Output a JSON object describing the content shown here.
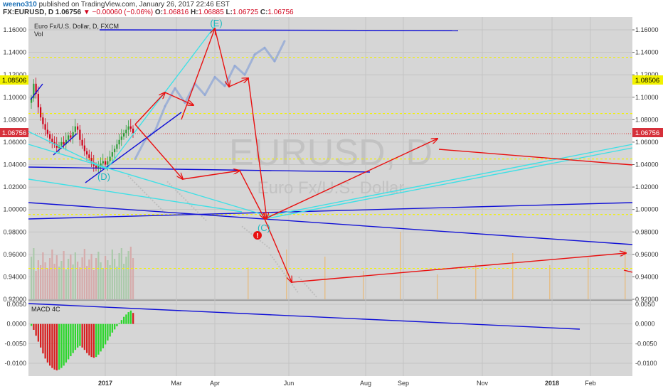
{
  "header": {
    "author": "weeno310",
    "published": "published on TradingView.com, January 26, 2017 22:46 EST",
    "symbol_line": "FX:EURUSD, D",
    "last": "1.06756",
    "change": "▼ −0.00060 (−0.06%)",
    "o_label": "O:",
    "o_value": "1.06816",
    "h_label": "H:",
    "h_value": "1.06885",
    "l_label": "L:",
    "l_value": "1.06725",
    "c_label": "C:",
    "c_value": "1.06756"
  },
  "main_panel": {
    "title": "Euro Fx/U.S. Dollar, D, FXCM",
    "vol_label": "Vol",
    "watermark_symbol": "EURUSD, D",
    "watermark_name": "Euro Fx/U.S. Dollar"
  },
  "price_badges": {
    "yellow": "1.08506",
    "red": "1.06756"
  },
  "wave_labels": {
    "d": "(D)",
    "e": "(E)",
    "c": "(C)",
    "warning": "!"
  },
  "macd_panel": {
    "title": "MACD 4C"
  },
  "colors": {
    "background": "#d6d6d6",
    "grid": "#c4c4c4",
    "up_candle": "#2e9e3a",
    "down_candle": "#d0021b",
    "projection": "#8fa6d6",
    "trend_blue": "#1010d6",
    "trend_cyan": "#3ee0e6",
    "arrow_red": "#e81010",
    "level_yellow": "#f2f200",
    "level_red": "#d94040",
    "macd_green": "#2ed62e",
    "macd_red": "#d62020"
  },
  "chart_data": [
    {
      "type": "line",
      "y_axis": {
        "min": 0.91,
        "max": 1.168,
        "ticks": [
          "1.16000",
          "1.14000",
          "1.12000",
          "1.10000",
          "1.08000",
          "1.06000",
          "1.04000",
          "1.02000",
          "1.00000",
          "0.98000",
          "0.96000",
          "0.94000",
          "0.92000"
        ]
      },
      "x_axis": {
        "ticks": [
          "2017",
          "Mar",
          "Apr",
          "Jun",
          "Aug",
          "Sep",
          "Nov",
          "2018",
          "Feb"
        ]
      },
      "yellow_levels": [
        1.1355,
        1.0855,
        1.045,
        0.9955,
        0.9475
      ],
      "red_level": 1.06756,
      "price_closes": [
        1.099,
        1.112,
        1.103,
        1.091,
        1.082,
        1.076,
        1.071,
        1.067,
        1.063,
        1.06,
        1.058,
        1.055,
        1.057,
        1.06,
        1.058,
        1.062,
        1.066,
        1.064,
        1.069,
        1.074,
        1.071,
        1.062,
        1.057,
        1.052,
        1.049,
        1.046,
        1.042,
        1.039,
        1.037,
        1.039,
        1.041,
        1.043,
        1.04,
        1.043,
        1.047,
        1.051,
        1.054,
        1.058,
        1.062,
        1.065,
        1.068,
        1.071,
        1.074,
        1.072,
        1.068
      ],
      "projection_path": [
        [
          1.045,
          1.062
        ],
        [
          1.062,
          1.07
        ],
        [
          1.07,
          1.092
        ],
        [
          1.092,
          1.108
        ],
        [
          1.108,
          1.095
        ],
        [
          1.095,
          1.112
        ],
        [
          1.112,
          1.102
        ],
        [
          1.102,
          1.118
        ],
        [
          1.118,
          1.11
        ],
        [
          1.11,
          1.128
        ],
        [
          1.128,
          1.12
        ],
        [
          1.12,
          1.138
        ],
        [
          1.138,
          1.144
        ],
        [
          1.144,
          1.132
        ],
        [
          1.132,
          1.15
        ]
      ],
      "wave_points": {
        "D": 1.035,
        "E": 1.16,
        "C": 0.991
      }
    },
    {
      "type": "bar",
      "name": "",
      "y_axis": {
        "min": -0.0135,
        "max": 0.0062,
        "ticks": [
          "0.0050",
          "0.0000",
          "-0.0050",
          "-0.0100"
        ]
      },
      "values": [
        -0.0005,
        -0.0015,
        -0.003,
        -0.0045,
        -0.006,
        -0.0075,
        -0.0088,
        -0.0098,
        -0.0106,
        -0.0112,
        -0.0116,
        -0.0118,
        -0.0116,
        -0.0112,
        -0.0106,
        -0.0098,
        -0.009,
        -0.0082,
        -0.0074,
        -0.0066,
        -0.006,
        -0.0056,
        -0.006,
        -0.0066,
        -0.0074,
        -0.008,
        -0.0084,
        -0.0086,
        -0.0084,
        -0.0078,
        -0.007,
        -0.0062,
        -0.0052,
        -0.0042,
        -0.0032,
        -0.0022,
        -0.0014,
        -0.0006,
        0.0002,
        0.001,
        0.0018,
        0.0024,
        0.003,
        0.0034,
        0.0028
      ]
    }
  ]
}
